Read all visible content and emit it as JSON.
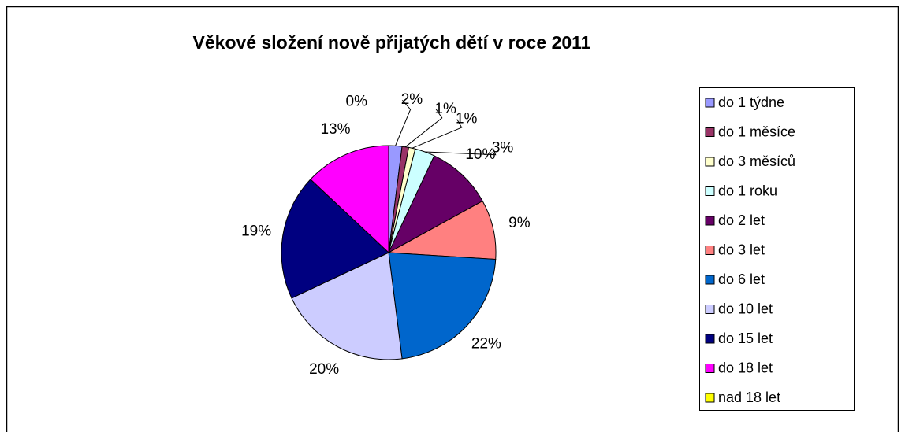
{
  "chart_data": {
    "type": "pie",
    "title": "Věkové složení  nově přijatých dětí v roce 2011",
    "categories": [
      "do 1 týdne",
      "do 1 měsíce",
      "do 3 měsíců",
      "do 1 roku",
      "do 2 let",
      "do 3 let",
      "do 6 let",
      "do 10 let",
      "do 15 let",
      "do 18 let",
      "nad 18 let"
    ],
    "values": [
      2,
      1,
      1,
      3,
      10,
      9,
      22,
      20,
      19,
      13,
      0
    ],
    "value_labels": [
      "2%",
      "1%",
      "1%",
      "3%",
      "10%",
      "9%",
      "22%",
      "20%",
      "19%",
      "13%",
      "0%"
    ],
    "colors": [
      "#9999FF",
      "#993366",
      "#FFFFCC",
      "#CCFFFF",
      "#660066",
      "#FF8080",
      "#0066CC",
      "#CCCCFF",
      "#000080",
      "#FF00FF",
      "#FFFF00"
    ],
    "legend": "right"
  }
}
